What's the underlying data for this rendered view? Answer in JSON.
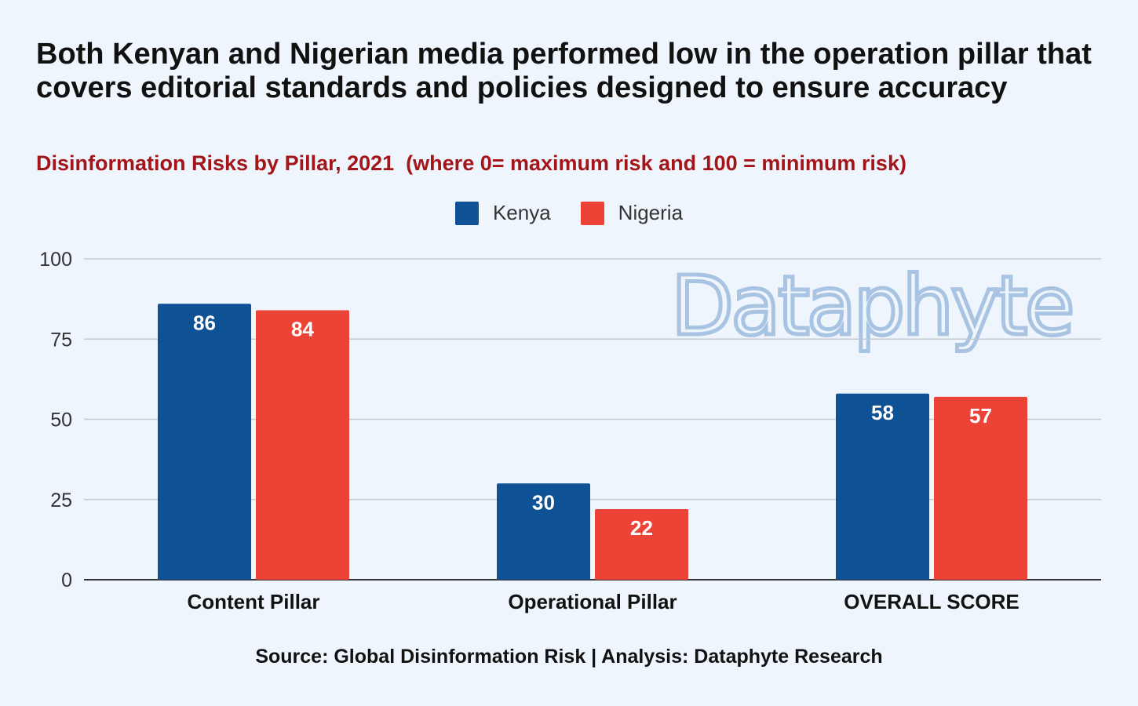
{
  "title": "Both Kenyan and Nigerian media performed low in the operation pillar that covers editorial standards and policies designed to ensure accuracy",
  "subtitle": "Disinformation Risks by Pillar, 2021  (where 0= maximum risk and 100 = minimum risk)",
  "source": "Source: Global Disinformation Risk | Analysis: Dataphyte Research",
  "watermark": "Dataphyte",
  "chart_data": {
    "type": "bar",
    "categories": [
      "Content Pillar",
      "Operational Pillar",
      "OVERALL SCORE"
    ],
    "series": [
      {
        "name": "Kenya",
        "values": [
          86,
          30,
          58
        ],
        "color": "#0e5195"
      },
      {
        "name": "Nigeria",
        "values": [
          84,
          22,
          57
        ],
        "color": "#eb4335"
      }
    ],
    "ylim": [
      0,
      100
    ],
    "yticks": [
      0,
      25,
      50,
      75,
      100
    ],
    "grid": true,
    "legend": "top-center",
    "data_labels": true
  }
}
